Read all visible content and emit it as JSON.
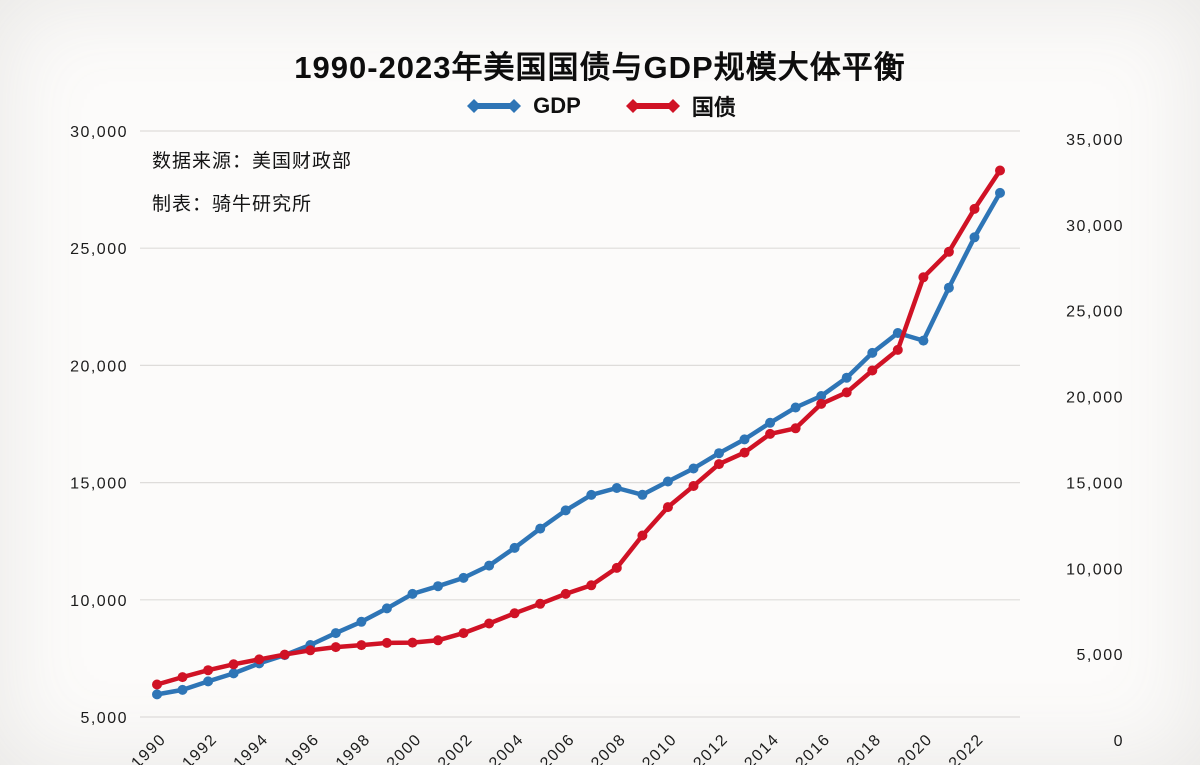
{
  "chart": {
    "title": "1990-2023年美国国债与GDP规模大体平衡",
    "annotations": {
      "source": "数据来源：美国财政部",
      "author": "制表：骑牛研究所"
    }
  },
  "chart_data": {
    "type": "line",
    "title": "1990-2023年美国国债与GDP规模大体平衡",
    "grid": true,
    "legend_position": "top",
    "x": [
      1990,
      1991,
      1992,
      1993,
      1994,
      1995,
      1996,
      1997,
      1998,
      1999,
      2000,
      2001,
      2002,
      2003,
      2004,
      2005,
      2006,
      2007,
      2008,
      2009,
      2010,
      2011,
      2012,
      2013,
      2014,
      2015,
      2016,
      2017,
      2018,
      2019,
      2020,
      2021,
      2022,
      2023
    ],
    "x_ticks": [
      "1990",
      "1992",
      "1994",
      "1996",
      "1998",
      "2000",
      "2002",
      "2004",
      "2006",
      "2008",
      "2010",
      "2012",
      "2014",
      "2016",
      "2018",
      "2020",
      "2022"
    ],
    "series": [
      {
        "name": "GDP",
        "axis": "left",
        "color": "#2e75b6",
        "values": [
          5963,
          6158,
          6520,
          6859,
          7287,
          7640,
          8073,
          8578,
          9063,
          9631,
          10251,
          10582,
          10936,
          11458,
          12214,
          13037,
          13815,
          14474,
          14770,
          14478,
          15049,
          15600,
          16254,
          16843,
          17551,
          18206,
          18695,
          19477,
          20533,
          21381,
          21060,
          23315,
          25464,
          27361
        ]
      },
      {
        "name": "国债",
        "axis": "right",
        "color": "#d01225",
        "values": [
          3233,
          3665,
          4065,
          4411,
          4693,
          4974,
          5225,
          5413,
          5526,
          5656,
          5674,
          5807,
          6228,
          6783,
          7379,
          7933,
          8507,
          9008,
          10025,
          11910,
          13562,
          14790,
          16066,
          16738,
          17824,
          18151,
          19573,
          20245,
          21516,
          22719,
          26945,
          28429,
          30928,
          33167
        ]
      }
    ],
    "left_axis": {
      "min": 5000,
      "max": 30000,
      "tick_values": [
        30000,
        25000,
        20000,
        15000,
        10000,
        5000
      ],
      "ticks": [
        "30,000",
        "25,000",
        "20,000",
        "15,000",
        "10,000",
        "5,000"
      ]
    },
    "right_axis": {
      "min": 0,
      "max": 35000,
      "tick_values": [
        35000,
        30000,
        25000,
        20000,
        15000,
        10000,
        5000,
        0
      ],
      "ticks": [
        "35,000",
        "30,000",
        "25,000",
        "20,000",
        "15,000",
        "10,000",
        "5,000",
        "0"
      ]
    },
    "grid_color": "#dedcda"
  }
}
